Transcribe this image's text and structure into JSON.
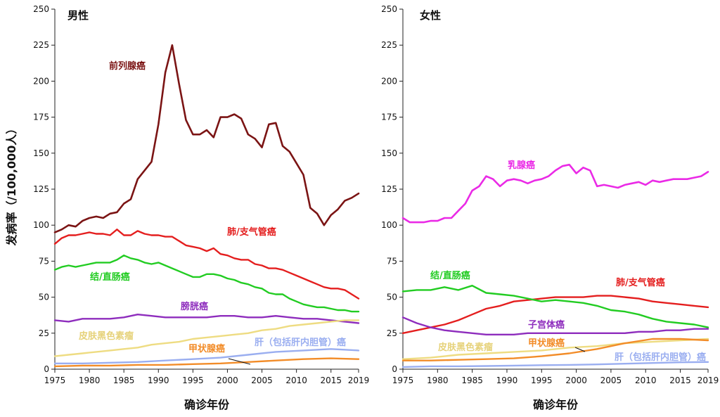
{
  "ylabel": "发病率（/100,000人）",
  "chart_data": [
    {
      "type": "line",
      "title": "男性",
      "xlabel": "确诊年份",
      "ylabel": "发病率（/100,000人）",
      "xlim": [
        1975,
        2019
      ],
      "ylim": [
        0,
        250
      ],
      "xticks": [
        "1975",
        "1980",
        "1985",
        "1990",
        "1995",
        "2000",
        "2005",
        "2010",
        "2015",
        "2019"
      ],
      "yticks": [
        "0",
        "25",
        "50",
        "75",
        "100",
        "125",
        "150",
        "175",
        "200",
        "225",
        "250"
      ],
      "grid": false,
      "legend": "inline labels",
      "series": [
        {
          "name": "前列腺癌",
          "color": "#7b1414",
          "x": [
            1975,
            1976,
            1977,
            1978,
            1979,
            1980,
            1981,
            1982,
            1983,
            1984,
            1985,
            1986,
            1987,
            1988,
            1989,
            1990,
            1991,
            1992,
            1993,
            1994,
            1995,
            1996,
            1997,
            1998,
            1999,
            2000,
            2001,
            2002,
            2003,
            2004,
            2005,
            2006,
            2007,
            2008,
            2009,
            2010,
            2011,
            2012,
            2013,
            2014,
            2015,
            2016,
            2017,
            2018,
            2019
          ],
          "values": [
            95,
            97,
            100,
            99,
            103,
            105,
            106,
            105,
            108,
            109,
            115,
            118,
            132,
            138,
            144,
            170,
            206,
            225,
            198,
            173,
            163,
            163,
            166,
            161,
            175,
            175,
            177,
            174,
            163,
            160,
            154,
            170,
            171,
            155,
            151,
            143,
            135,
            112,
            108,
            100,
            107,
            111,
            117,
            119,
            122
          ]
        },
        {
          "name": "肺/支气管癌",
          "color": "#e41e1e",
          "x": [
            1975,
            1976,
            1977,
            1978,
            1979,
            1980,
            1981,
            1982,
            1983,
            1984,
            1985,
            1986,
            1987,
            1988,
            1989,
            1990,
            1991,
            1992,
            1993,
            1994,
            1995,
            1996,
            1997,
            1998,
            1999,
            2000,
            2001,
            2002,
            2003,
            2004,
            2005,
            2006,
            2007,
            2008,
            2009,
            2010,
            2011,
            2012,
            2013,
            2014,
            2015,
            2016,
            2017,
            2018,
            2019
          ],
          "values": [
            87,
            91,
            93,
            93,
            94,
            95,
            94,
            94,
            93,
            97,
            93,
            93,
            96,
            94,
            93,
            93,
            92,
            92,
            89,
            86,
            85,
            84,
            82,
            84,
            80,
            79,
            77,
            76,
            76,
            73,
            72,
            70,
            70,
            69,
            67,
            65,
            63,
            61,
            59,
            57,
            56,
            56,
            55,
            52,
            49
          ]
        },
        {
          "name": "结/直肠癌",
          "color": "#22cc22",
          "x": [
            1975,
            1976,
            1977,
            1978,
            1979,
            1980,
            1981,
            1982,
            1983,
            1984,
            1985,
            1986,
            1987,
            1988,
            1989,
            1990,
            1991,
            1992,
            1993,
            1994,
            1995,
            1996,
            1997,
            1998,
            1999,
            2000,
            2001,
            2002,
            2003,
            2004,
            2005,
            2006,
            2007,
            2008,
            2009,
            2010,
            2011,
            2012,
            2013,
            2014,
            2015,
            2016,
            2017,
            2018,
            2019
          ],
          "values": [
            69,
            71,
            72,
            71,
            72,
            73,
            74,
            74,
            74,
            76,
            79,
            77,
            76,
            74,
            73,
            74,
            72,
            70,
            68,
            66,
            64,
            64,
            66,
            66,
            65,
            63,
            62,
            60,
            59,
            57,
            56,
            53,
            52,
            52,
            49,
            47,
            45,
            44,
            43,
            43,
            42,
            41,
            41,
            40,
            40
          ]
        },
        {
          "name": "膀胱癌",
          "color": "#8e2dbd",
          "x": [
            1975,
            1977,
            1979,
            1981,
            1983,
            1985,
            1987,
            1989,
            1991,
            1993,
            1995,
            1997,
            1999,
            2001,
            2003,
            2005,
            2007,
            2009,
            2011,
            2013,
            2015,
            2017,
            2019
          ],
          "values": [
            34,
            33,
            35,
            35,
            35,
            36,
            38,
            37,
            36,
            36,
            36,
            36,
            37,
            37,
            36,
            36,
            37,
            36,
            35,
            35,
            34,
            33,
            32
          ]
        },
        {
          "name": "皮肤黑色素瘤",
          "color": "#eedc82",
          "x": [
            1975,
            1977,
            1979,
            1981,
            1983,
            1985,
            1987,
            1989,
            1991,
            1993,
            1995,
            1997,
            1999,
            2001,
            2003,
            2005,
            2007,
            2009,
            2011,
            2013,
            2015,
            2017,
            2019
          ],
          "values": [
            9,
            10,
            11,
            12,
            13,
            14,
            15,
            17,
            18,
            19,
            21,
            22,
            23,
            24,
            25,
            27,
            28,
            30,
            31,
            32,
            33,
            34,
            34
          ]
        },
        {
          "name": "甲状腺癌",
          "color": "#f28c28",
          "x": [
            1975,
            1979,
            1983,
            1987,
            1991,
            1995,
            1999,
            2003,
            2007,
            2011,
            2015,
            2019
          ],
          "values": [
            2,
            2.5,
            2.5,
            3,
            3,
            3.5,
            4,
            5,
            6,
            7,
            7.5,
            7
          ]
        },
        {
          "name": "肝（包括肝内胆管）癌",
          "color": "#9aaef0",
          "x": [
            1975,
            1979,
            1983,
            1987,
            1991,
            1995,
            1999,
            2003,
            2007,
            2011,
            2015,
            2019
          ],
          "values": [
            4,
            4,
            4.5,
            5,
            6,
            7,
            8,
            10,
            12,
            13,
            14,
            13
          ]
        }
      ]
    },
    {
      "type": "line",
      "title": "女性",
      "xlabel": "确诊年份",
      "xlim": [
        1975,
        2019
      ],
      "ylim": [
        0,
        250
      ],
      "xticks": [
        "1975",
        "1980",
        "1985",
        "1990",
        "1995",
        "2000",
        "2005",
        "2010",
        "2015",
        "2019"
      ],
      "yticks": [
        "0",
        "25",
        "50",
        "75",
        "100",
        "125",
        "150",
        "175",
        "200",
        "225",
        "250"
      ],
      "grid": false,
      "legend": "inline labels",
      "series": [
        {
          "name": "乳腺癌",
          "color": "#ea2ae6",
          "x": [
            1975,
            1976,
            1977,
            1978,
            1979,
            1980,
            1981,
            1982,
            1983,
            1984,
            1985,
            1986,
            1987,
            1988,
            1989,
            1990,
            1991,
            1992,
            1993,
            1994,
            1995,
            1996,
            1997,
            1998,
            1999,
            2000,
            2001,
            2002,
            2003,
            2004,
            2005,
            2006,
            2007,
            2008,
            2009,
            2010,
            2011,
            2012,
            2013,
            2014,
            2015,
            2016,
            2017,
            2018,
            2019
          ],
          "values": [
            105,
            102,
            102,
            102,
            103,
            103,
            105,
            105,
            110,
            115,
            124,
            127,
            134,
            132,
            127,
            131,
            132,
            131,
            129,
            131,
            132,
            134,
            138,
            141,
            142,
            136,
            140,
            138,
            127,
            128,
            127,
            126,
            128,
            129,
            130,
            128,
            131,
            130,
            131,
            132,
            132,
            132,
            133,
            134,
            137
          ]
        },
        {
          "name": "肺/支气管癌",
          "color": "#e41e1e",
          "x": [
            1975,
            1977,
            1979,
            1981,
            1983,
            1985,
            1987,
            1989,
            1991,
            1993,
            1995,
            1997,
            1999,
            2001,
            2003,
            2005,
            2007,
            2009,
            2011,
            2013,
            2015,
            2017,
            2019
          ],
          "values": [
            25,
            27,
            29,
            31,
            34,
            38,
            42,
            44,
            47,
            48,
            49,
            50,
            50,
            50,
            51,
            51,
            50,
            49,
            47,
            46,
            45,
            44,
            43
          ]
        },
        {
          "name": "结/直肠癌",
          "color": "#22cc22",
          "x": [
            1975,
            1977,
            1979,
            1981,
            1983,
            1985,
            1987,
            1989,
            1991,
            1993,
            1995,
            1997,
            1999,
            2001,
            2003,
            2005,
            2007,
            2009,
            2011,
            2013,
            2015,
            2017,
            2019
          ],
          "values": [
            54,
            55,
            55,
            57,
            55,
            58,
            53,
            52,
            51,
            49,
            47,
            48,
            47,
            46,
            44,
            41,
            40,
            38,
            35,
            33,
            32,
            31,
            29
          ]
        },
        {
          "name": "子宫体癌",
          "color": "#8e2dbd",
          "x": [
            1975,
            1977,
            1979,
            1981,
            1983,
            1985,
            1987,
            1989,
            1991,
            1993,
            1995,
            1997,
            1999,
            2001,
            2003,
            2005,
            2007,
            2009,
            2011,
            2013,
            2015,
            2017,
            2019
          ],
          "values": [
            36,
            32,
            29,
            27,
            26,
            25,
            24,
            24,
            24,
            25,
            25,
            25,
            25,
            25,
            25,
            25,
            25,
            26,
            26,
            27,
            27,
            28,
            28
          ]
        },
        {
          "name": "皮肤黑色素瘤",
          "color": "#eedc82",
          "x": [
            1975,
            1979,
            1983,
            1987,
            1991,
            1995,
            1999,
            2003,
            2007,
            2011,
            2015,
            2019
          ],
          "values": [
            7,
            8,
            10,
            11,
            12,
            13,
            15,
            16,
            18,
            19,
            20,
            21
          ]
        },
        {
          "name": "甲状腺癌",
          "color": "#f28c28",
          "x": [
            1975,
            1979,
            1983,
            1987,
            1991,
            1995,
            1999,
            2003,
            2007,
            2011,
            2015,
            2019
          ],
          "values": [
            6,
            6,
            6.5,
            7,
            7.5,
            9,
            11,
            14,
            18,
            21,
            21,
            20
          ]
        },
        {
          "name": "肝（包括肝内胆管）癌",
          "color": "#9aaef0",
          "x": [
            1975,
            1979,
            1983,
            1987,
            1991,
            1995,
            1999,
            2003,
            2007,
            2011,
            2015,
            2019
          ],
          "values": [
            1.5,
            2,
            2,
            2.2,
            2.5,
            2.8,
            3,
            3.3,
            3.8,
            4.3,
            4.8,
            5
          ]
        }
      ]
    }
  ]
}
